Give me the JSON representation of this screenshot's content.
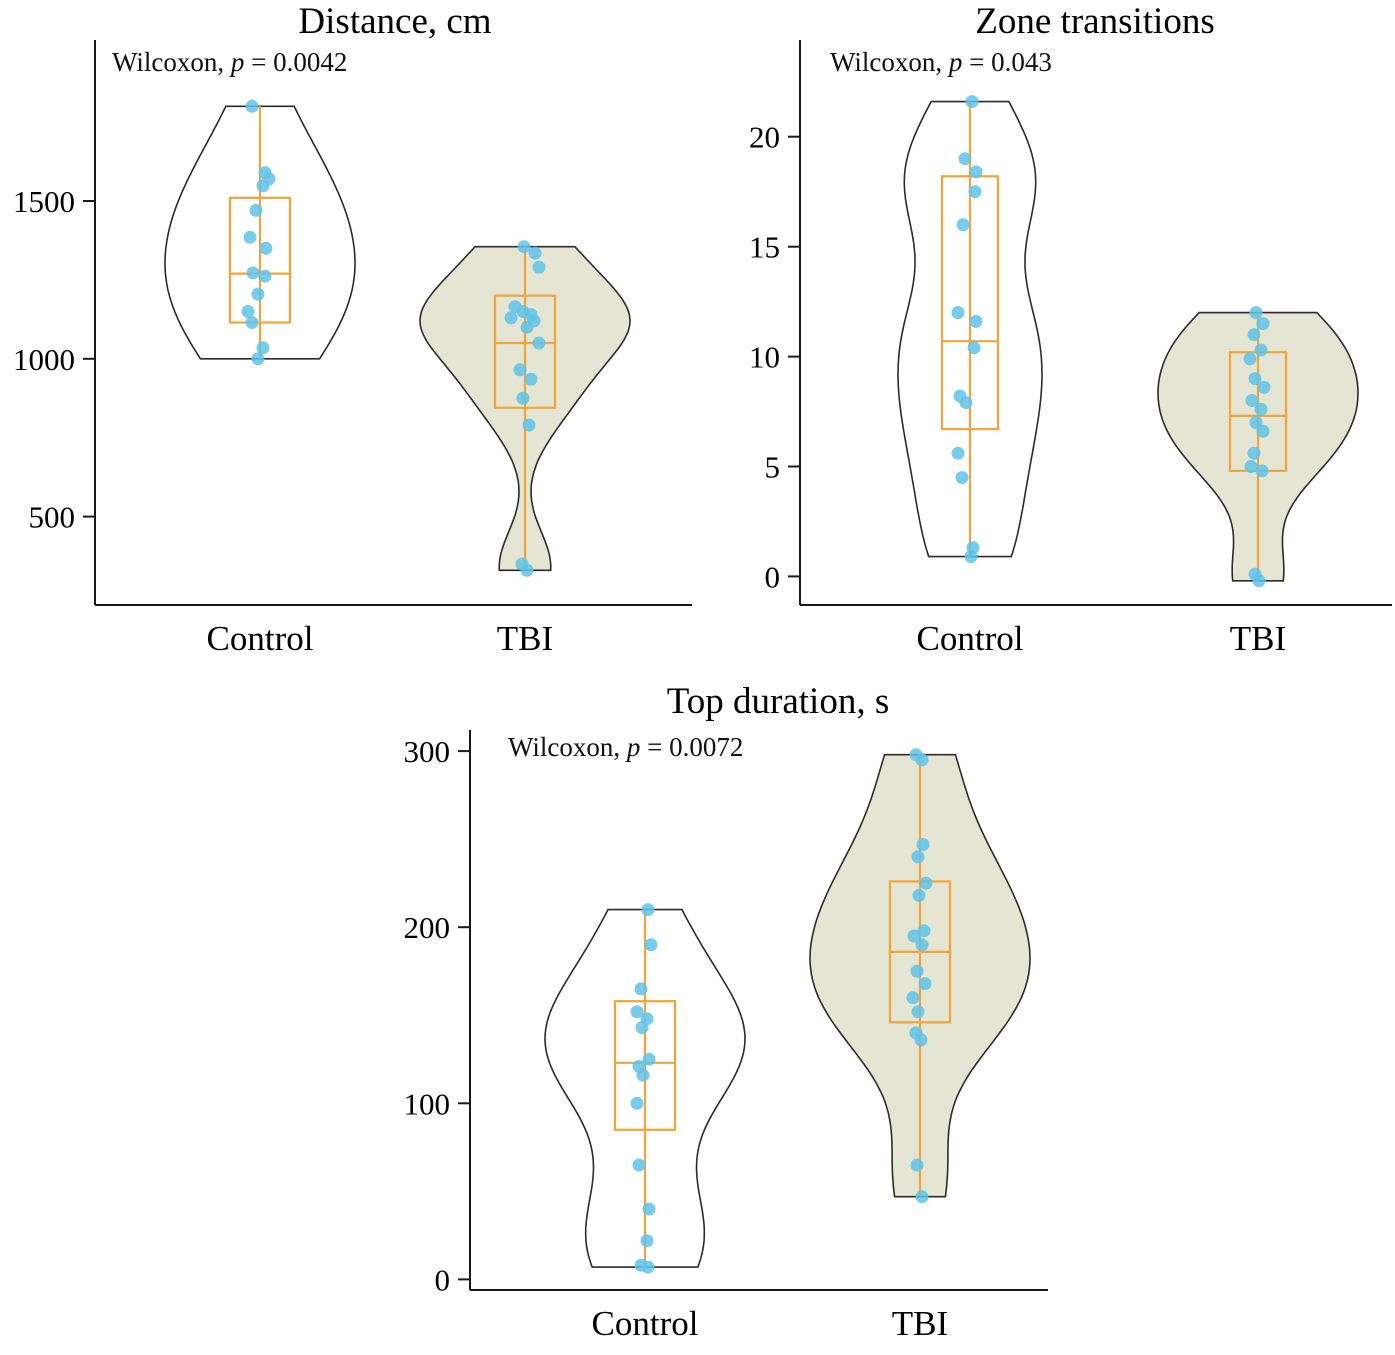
{
  "colors": {
    "axis": "#1a1a1a",
    "violin_stroke": "#2b2b2b",
    "box": "#f2a43b",
    "point": "#5fc3e7",
    "control_fill": "#ffffff",
    "tbi_fill": "#e4e5d3"
  },
  "chart_data": [
    {
      "type": "violin",
      "title": "Distance, cm",
      "annotation": {
        "test": "Wilcoxon, ",
        "symbol": "p",
        "value": " = 0.0042"
      },
      "categories": [
        "Control",
        "TBI"
      ],
      "ylabel": "",
      "ylim": [
        220,
        2010
      ],
      "yticks": [
        500,
        1000,
        1500
      ],
      "series": [
        {
          "name": "Control",
          "fill": "#ffffff",
          "bandwidth": 210,
          "halfwidth": 95,
          "box": {
            "q1": 1115,
            "median": 1270,
            "q3": 1510,
            "whisker_low": 1000,
            "whisker_high": 1800
          },
          "points": [
            [
              1800,
              -8
            ],
            [
              1590,
              5
            ],
            [
              1570,
              9
            ],
            [
              1548,
              3
            ],
            [
              1470,
              -4
            ],
            [
              1385,
              -10
            ],
            [
              1350,
              6
            ],
            [
              1272,
              -7
            ],
            [
              1262,
              5
            ],
            [
              1205,
              -2
            ],
            [
              1150,
              -12
            ],
            [
              1115,
              -8
            ],
            [
              1035,
              3
            ],
            [
              1000,
              -2
            ]
          ]
        },
        {
          "name": "TBI",
          "fill": "#e4e5d3",
          "bandwidth": 115,
          "halfwidth": 105,
          "box": {
            "q1": 845,
            "median": 1050,
            "q3": 1200,
            "whisker_low": 335,
            "whisker_high": 1355
          },
          "points": [
            [
              1355,
              -1
            ],
            [
              1335,
              10
            ],
            [
              1290,
              14
            ],
            [
              1165,
              -10
            ],
            [
              1150,
              -2
            ],
            [
              1140,
              6
            ],
            [
              1130,
              -14
            ],
            [
              1120,
              9
            ],
            [
              1100,
              2
            ],
            [
              1050,
              14
            ],
            [
              965,
              -5
            ],
            [
              935,
              6
            ],
            [
              875,
              -2
            ],
            [
              790,
              4
            ],
            [
              350,
              -3
            ],
            [
              330,
              2
            ]
          ]
        }
      ]
    },
    {
      "type": "violin",
      "title": "Zone transitions",
      "annotation": {
        "test": "Wilcoxon, ",
        "symbol": "p",
        "value": " = 0.043"
      },
      "categories": [
        "Control",
        "TBI"
      ],
      "ylabel": "",
      "ylim": [
        -1.3,
        24.4
      ],
      "yticks": [
        0,
        5,
        10,
        15,
        20
      ],
      "series": [
        {
          "name": "Control",
          "fill": "#ffffff",
          "bandwidth": 2.6,
          "halfwidth": 72,
          "box": {
            "q1": 6.7,
            "median": 10.7,
            "q3": 18.2,
            "whisker_low": 0.9,
            "whisker_high": 21.6
          },
          "points": [
            [
              21.6,
              2
            ],
            [
              19,
              -5
            ],
            [
              18.4,
              6
            ],
            [
              17.5,
              5
            ],
            [
              16,
              -7
            ],
            [
              12,
              -12
            ],
            [
              11.6,
              6
            ],
            [
              10.4,
              4
            ],
            [
              8.2,
              -10
            ],
            [
              7.9,
              -4
            ],
            [
              5.6,
              -12
            ],
            [
              4.5,
              -8
            ],
            [
              1.3,
              3
            ],
            [
              0.9,
              1
            ]
          ]
        },
        {
          "name": "TBI",
          "fill": "#e4e5d3",
          "bandwidth": 1.9,
          "halfwidth": 100,
          "box": {
            "q1": 4.8,
            "median": 7.3,
            "q3": 10.2,
            "whisker_low": -0.2,
            "whisker_high": 12
          },
          "points": [
            [
              12,
              -2
            ],
            [
              11.5,
              5
            ],
            [
              11,
              -4
            ],
            [
              10.3,
              3
            ],
            [
              9.9,
              -8
            ],
            [
              9,
              -3
            ],
            [
              8.6,
              6
            ],
            [
              8,
              -6
            ],
            [
              7.6,
              3
            ],
            [
              7,
              -2
            ],
            [
              6.6,
              5
            ],
            [
              5.6,
              -4
            ],
            [
              5,
              -7
            ],
            [
              4.8,
              4
            ],
            [
              0.1,
              -3
            ],
            [
              -0.2,
              1
            ]
          ]
        }
      ]
    },
    {
      "type": "violin",
      "title": "Top duration, s",
      "annotation": {
        "test": "Wilcoxon, ",
        "symbol": "p",
        "value": " = 0.0072"
      },
      "categories": [
        "Control",
        "TBI"
      ],
      "ylabel": "",
      "ylim": [
        -6,
        312
      ],
      "yticks": [
        0,
        100,
        200,
        300
      ],
      "series": [
        {
          "name": "Control",
          "fill": "#ffffff",
          "bandwidth": 30,
          "halfwidth": 100,
          "box": {
            "q1": 85,
            "median": 123,
            "q3": 158,
            "whisker_low": 7,
            "whisker_high": 210
          },
          "points": [
            [
              210,
              3
            ],
            [
              190,
              6
            ],
            [
              165,
              -4
            ],
            [
              152,
              -8
            ],
            [
              148,
              2
            ],
            [
              143,
              -3
            ],
            [
              125,
              4
            ],
            [
              121,
              -6
            ],
            [
              116,
              -2
            ],
            [
              100,
              -8
            ],
            [
              65,
              -6
            ],
            [
              40,
              4
            ],
            [
              22,
              2
            ],
            [
              8,
              -4
            ],
            [
              7,
              3
            ]
          ]
        },
        {
          "name": "TBI",
          "fill": "#e4e5d3",
          "bandwidth": 33,
          "halfwidth": 110,
          "box": {
            "q1": 146,
            "median": 186,
            "q3": 226,
            "whisker_low": 47,
            "whisker_high": 298
          },
          "points": [
            [
              298,
              -4
            ],
            [
              295,
              2
            ],
            [
              247,
              3
            ],
            [
              240,
              -2
            ],
            [
              225,
              6
            ],
            [
              218,
              -1
            ],
            [
              198,
              4
            ],
            [
              195,
              -6
            ],
            [
              190,
              2
            ],
            [
              175,
              -3
            ],
            [
              168,
              5
            ],
            [
              160,
              -7
            ],
            [
              152,
              -2
            ],
            [
              140,
              -4
            ],
            [
              136,
              1
            ],
            [
              65,
              -3
            ],
            [
              47,
              2
            ]
          ]
        }
      ]
    }
  ]
}
